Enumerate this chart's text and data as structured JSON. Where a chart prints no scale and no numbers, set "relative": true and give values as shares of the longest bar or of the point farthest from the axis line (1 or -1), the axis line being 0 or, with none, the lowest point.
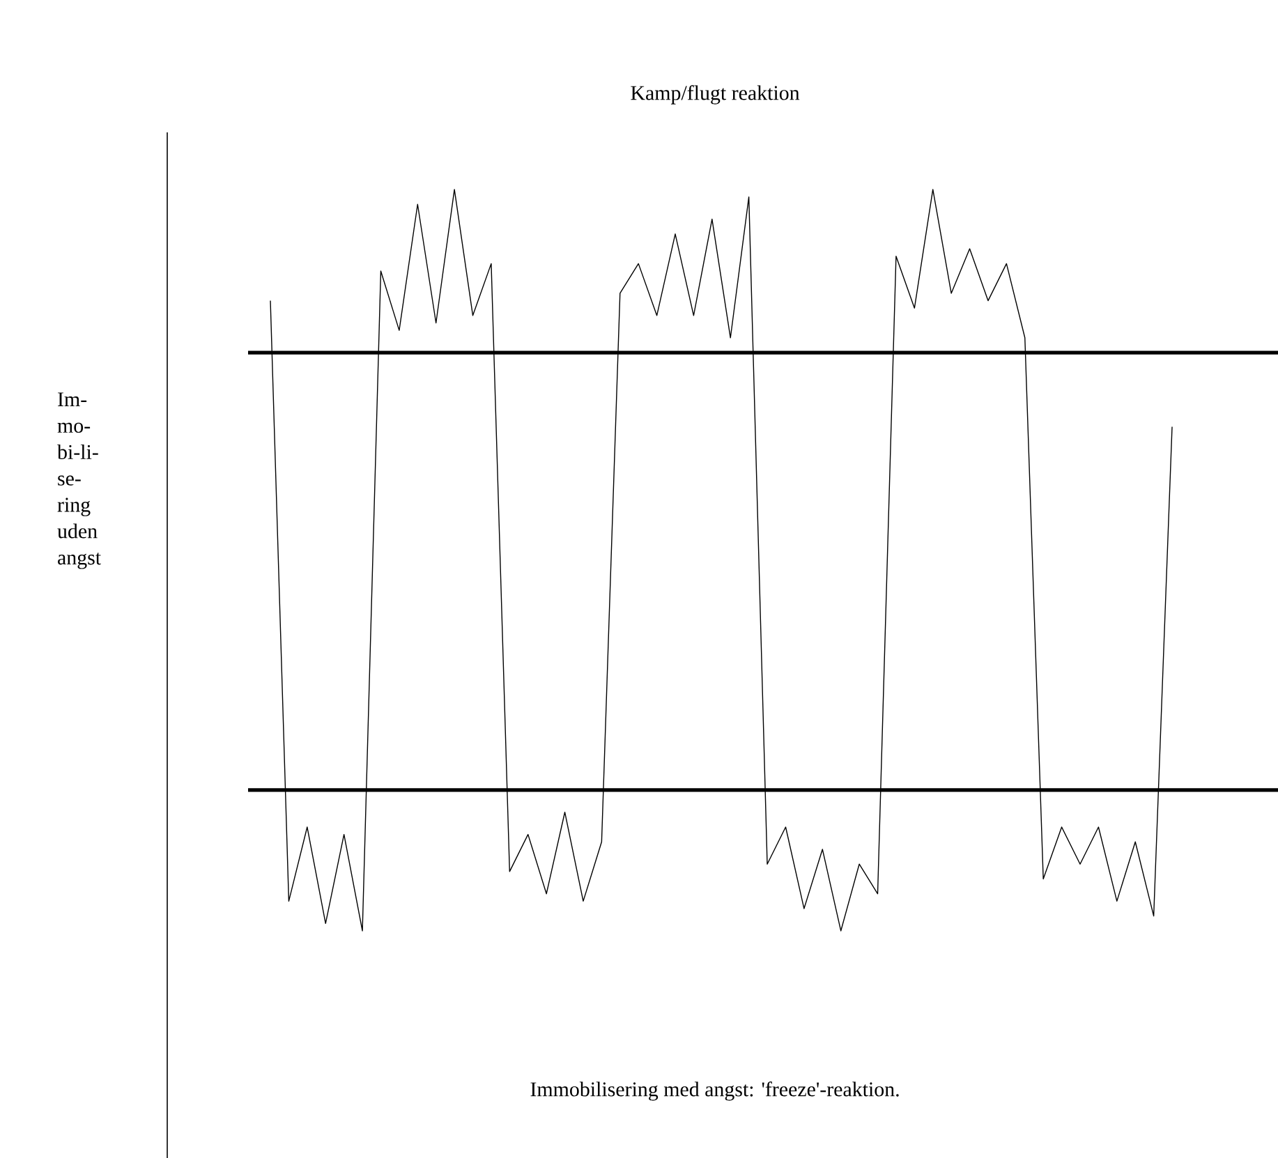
{
  "chart_data": {
    "type": "line",
    "title": "Kamp/flugt reaktion",
    "annotations": [
      "Im-mo-bi-li-se-ring uden angst",
      "Immobilisering med angst: 'freeze'-reaktion."
    ],
    "relative": true,
    "marker": "none",
    "line_style": "solid",
    "categories": [
      null,
      null,
      null,
      null,
      null,
      null,
      null,
      null,
      null,
      null,
      null,
      null,
      null,
      null,
      null,
      null,
      null,
      null,
      null,
      null,
      null,
      null,
      null,
      null,
      null,
      null,
      null,
      null,
      null,
      null,
      null,
      null,
      null,
      null,
      null,
      null,
      null,
      null,
      null,
      null,
      null,
      null,
      null,
      null,
      null,
      null,
      null,
      null,
      null,
      null
    ],
    "series": [
      {
        "color": "#000000",
        "values": [
          0.85,
          0.04,
          0.14,
          0.01,
          0.13,
          0,
          0.89,
          0.81,
          0.98,
          0.82,
          1.0,
          0.83,
          0.9,
          0.08,
          0.13,
          0.05,
          0.16,
          0.04,
          0.12,
          0.86,
          0.9,
          0.83,
          0.94,
          0.83,
          0.96,
          0.8,
          0.99,
          0.09,
          0.14,
          0.03,
          0.11,
          0,
          0.09,
          0.05,
          0.91,
          0.84,
          1.0,
          0.86,
          0.92,
          0.85,
          0.9,
          0.8,
          0.07,
          0.14,
          0.09,
          0.14,
          0.04,
          0.12,
          0.02,
          0.68
        ]
      }
    ],
    "ref_lines": [
      {
        "axis": "y",
        "value": 0.78,
        "color": "#000000"
      },
      {
        "axis": "y",
        "value": 0.19,
        "color": "#000000"
      }
    ]
  }
}
